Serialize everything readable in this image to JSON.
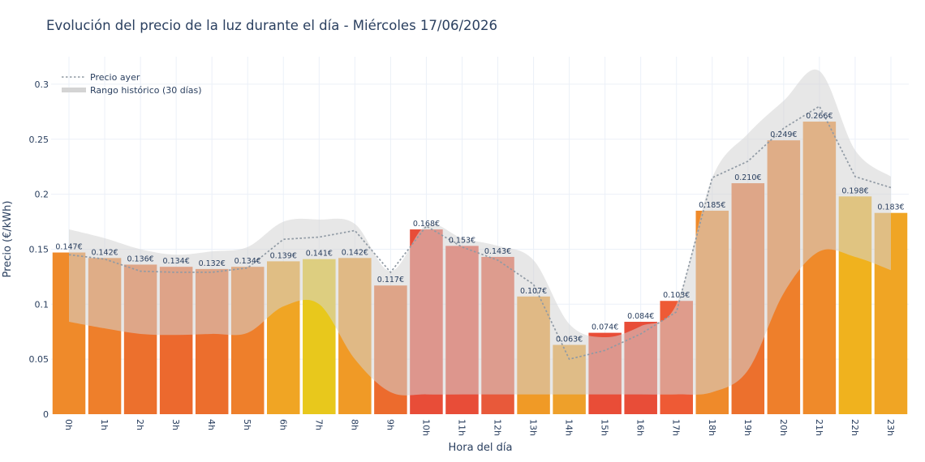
{
  "chart_data": {
    "type": "bar",
    "title": "Evolución del precio de la luz durante el día - Miércoles 17/06/2026",
    "xlabel": "Hora del día",
    "ylabel": "Precio (€/kWh)",
    "ylim": [
      0,
      0.325
    ],
    "yticks": [
      0,
      0.05,
      0.1,
      0.15,
      0.2,
      0.25,
      0.3
    ],
    "ytick_labels": [
      "0",
      "0.05",
      "0.1",
      "0.15",
      "0.2",
      "0.25",
      "0.3"
    ],
    "grid": true,
    "legend_position": "top-left",
    "categories": [
      "0h",
      "1h",
      "2h",
      "3h",
      "4h",
      "5h",
      "6h",
      "7h",
      "8h",
      "9h",
      "10h",
      "11h",
      "12h",
      "13h",
      "14h",
      "15h",
      "16h",
      "17h",
      "18h",
      "19h",
      "20h",
      "21h",
      "22h",
      "23h"
    ],
    "series": [
      {
        "kind": "bar",
        "values": [
          0.147,
          0.142,
          0.136,
          0.134,
          0.132,
          0.134,
          0.139,
          0.141,
          0.142,
          0.117,
          0.168,
          0.153,
          0.143,
          0.107,
          0.063,
          0.074,
          0.084,
          0.103,
          0.185,
          0.21,
          0.249,
          0.266,
          0.198,
          0.183
        ],
        "labels": [
          "0.147€",
          "0.142€",
          "0.136€",
          "0.134€",
          "0.132€",
          "0.134€",
          "0.139€",
          "0.141€",
          "0.142€",
          "0.117€",
          "0.168€",
          "0.153€",
          "0.143€",
          "0.107€",
          "0.063€",
          "0.074€",
          "0.084€",
          "0.103€",
          "0.185€",
          "0.210€",
          "0.249€",
          "0.266€",
          "0.198€",
          "0.183€"
        ],
        "colors": [
          "#ef8a2a",
          "#ee7f2b",
          "#ec702d",
          "#ec692e",
          "#ec6e2d",
          "#ee7f2b",
          "#f0a524",
          "#e8c81c",
          "#f09a26",
          "#ec6b2d",
          "#e84d38",
          "#e84d38",
          "#e8593a",
          "#f09a26",
          "#eea02a",
          "#e94d37",
          "#e84d38",
          "#ee5a35",
          "#ef8a2a",
          "#ec702d",
          "#ee7f2b",
          "#ef8a2a",
          "#f0b21e",
          "#f0a524"
        ]
      },
      {
        "name": "Precio ayer",
        "kind": "line",
        "values": [
          0.145,
          0.141,
          0.13,
          0.129,
          0.129,
          0.133,
          0.159,
          0.161,
          0.167,
          0.129,
          0.171,
          0.152,
          0.14,
          0.118,
          0.05,
          0.058,
          0.073,
          0.093,
          0.215,
          0.23,
          0.26,
          0.28,
          0.216,
          0.206
        ],
        "color": "#909aa4"
      },
      {
        "name": "Rango histórico (30 días)",
        "kind": "band",
        "upper": [
          0.168,
          0.16,
          0.15,
          0.145,
          0.148,
          0.152,
          0.175,
          0.177,
          0.173,
          0.13,
          0.172,
          0.16,
          0.153,
          0.14,
          0.082,
          0.07,
          0.08,
          0.1,
          0.215,
          0.255,
          0.285,
          0.312,
          0.24,
          0.216
        ],
        "lower": [
          0.084,
          0.078,
          0.073,
          0.072,
          0.073,
          0.074,
          0.098,
          0.1,
          0.05,
          0.02,
          0.018,
          0.018,
          0.018,
          0.018,
          0.018,
          0.018,
          0.018,
          0.018,
          0.02,
          0.04,
          0.11,
          0.148,
          0.143,
          0.131
        ],
        "color": "#d4d4d4"
      }
    ]
  }
}
